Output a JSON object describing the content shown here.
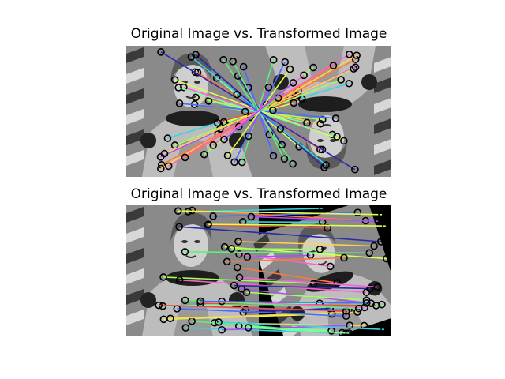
{
  "figure": {
    "panels": [
      {
        "title": "Original Image vs. Transformed Image",
        "transform": "rotation-180"
      },
      {
        "title": "Original Image vs. Transformed Image",
        "transform": "rotation-small"
      }
    ]
  },
  "colors": {
    "background": "#ffffff",
    "match_palette": [
      "#5cf07a",
      "#4a6cff",
      "#e0ff4a",
      "#ff5fd0",
      "#36d6e0",
      "#b04aff",
      "#ff7a3a",
      "#7aff9a",
      "#2a2aaa",
      "#e84a4a",
      "#a0ff5a",
      "#ffd24a"
    ]
  }
}
